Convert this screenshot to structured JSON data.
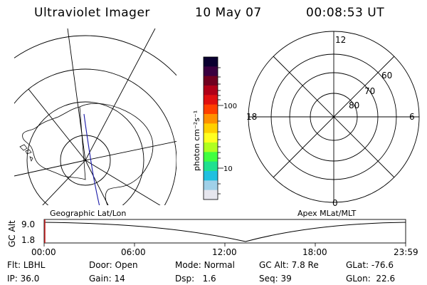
{
  "header": {
    "title": "Ultraviolet Imager",
    "date": "10 May 07",
    "time": "00:08:53 UT"
  },
  "geo_panel": {
    "label": "Geographic Lat/Lon"
  },
  "mag_panel": {
    "label": "Apex MLat/MLT",
    "mlt_labels": {
      "top": "12",
      "left": "18",
      "right": "6",
      "bottom": "0"
    },
    "mlat_labels": [
      "60",
      "70",
      "80"
    ]
  },
  "colorbar": {
    "unit_label": "photon cm⁻²s⁻¹",
    "tick_labels": [
      "100",
      "10"
    ],
    "colors": [
      "#0a0030",
      "#3a0040",
      "#700020",
      "#b00018",
      "#e01010",
      "#ff4000",
      "#ff9000",
      "#ffd000",
      "#ffff20",
      "#b0ff20",
      "#40ff40",
      "#20e090",
      "#20c0e0",
      "#a0d0e8",
      "#e6e6ee"
    ]
  },
  "altitude_plot": {
    "axis_title": "GC Alt",
    "y_ticks": [
      "9.0",
      "1.8"
    ],
    "x_ticks": [
      "00:00",
      "06:00",
      "12:00",
      "18:00",
      "23:59"
    ]
  },
  "info": {
    "flt": {
      "label": "Flt:",
      "value": "LBHL"
    },
    "ip": {
      "label": "IP:",
      "value": "36.0"
    },
    "door": {
      "label": "Door:",
      "value": "Open"
    },
    "gain": {
      "label": "Gain:",
      "value": "14"
    },
    "mode": {
      "label": "Mode:",
      "value": "Normal"
    },
    "dsp": {
      "label": "Dsp:",
      "value": "1.6"
    },
    "gcalt": {
      "label": "GC Alt:",
      "value": "7.8 Re"
    },
    "seq": {
      "label": "Seq:",
      "value": "39"
    },
    "glat": {
      "label": "GLat:",
      "value": "-76.6"
    },
    "glon": {
      "label": "GLon:",
      "value": "22.6"
    }
  }
}
